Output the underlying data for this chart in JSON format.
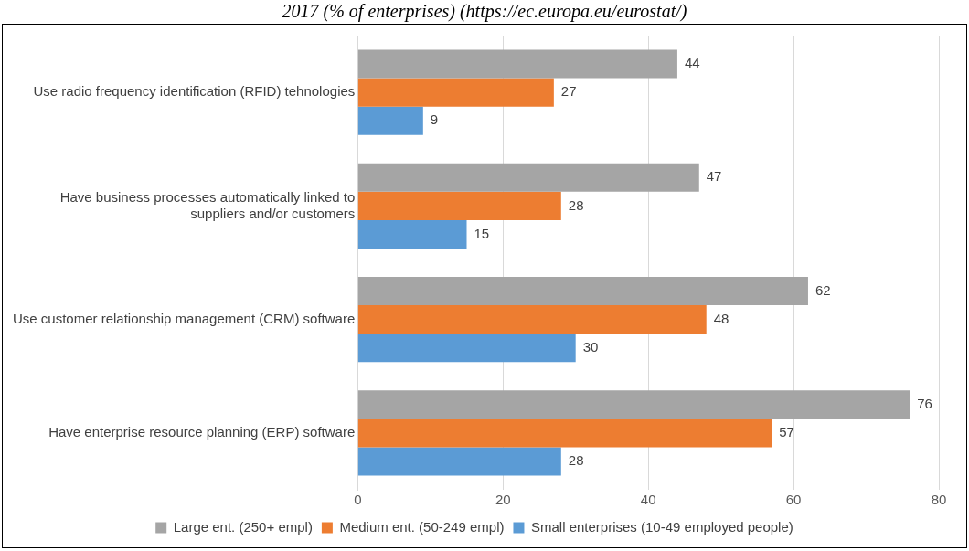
{
  "chart_data": {
    "type": "bar",
    "orientation": "horizontal",
    "title": "2017 (% of enterprises) (https://ec.europa.eu/eurostat/)",
    "categories": [
      "Use radio frequency identification (RFID) tehnologies",
      "Have business processes automatically linked to suppliers and/or customers",
      "Use customer relationship management (CRM) software",
      "Have enterprise resource planning (ERP) software"
    ],
    "series": [
      {
        "name": "Large ent. (250+ empl)",
        "color": "#a5a5a5",
        "values": [
          44,
          47,
          62,
          76
        ]
      },
      {
        "name": "Medium ent. (50-249 empl)",
        "color": "#ed7d31",
        "values": [
          27,
          28,
          48,
          57
        ]
      },
      {
        "name": "Small enterprises (10-49 employed people)",
        "color": "#5b9bd5",
        "values": [
          9,
          15,
          30,
          28
        ]
      }
    ],
    "xlim": [
      0,
      80
    ],
    "xticks": [
      0,
      20,
      40,
      60,
      80
    ],
    "grid": "x",
    "legend": "bottom",
    "data_labels": true
  }
}
